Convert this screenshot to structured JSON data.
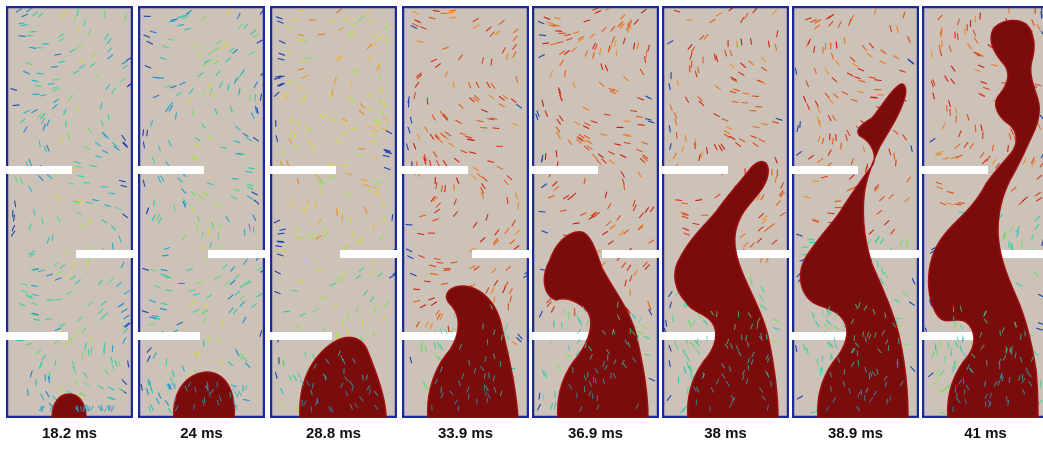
{
  "panels": [
    {
      "time_label": "18.2 ms",
      "stage": 1
    },
    {
      "time_label": "24 ms",
      "stage": 2
    },
    {
      "time_label": "28.8 ms",
      "stage": 3
    },
    {
      "time_label": "33.9 ms",
      "stage": 4
    },
    {
      "time_label": "36.9 ms",
      "stage": 5
    },
    {
      "time_label": "38 ms",
      "stage": 6
    },
    {
      "time_label": "38.9 ms",
      "stage": 7
    },
    {
      "time_label": "41 ms",
      "stage": 8
    }
  ],
  "colors": {
    "background": "#ffffff",
    "domain": "#cdc2b8",
    "blob": "#7a0c0c",
    "blob_edge": "#a01010",
    "wall": "#1a2a9a",
    "baffle": "#ffffff",
    "caption": "#111111",
    "velocity_colormap": [
      "#1b2a9e",
      "#1f6fd1",
      "#23b6c8",
      "#3fd39a",
      "#9fe04a",
      "#f0d43a",
      "#e66a1e",
      "#c81414"
    ]
  },
  "icons": {
    "velocity_vector": "arrow-glyph"
  }
}
